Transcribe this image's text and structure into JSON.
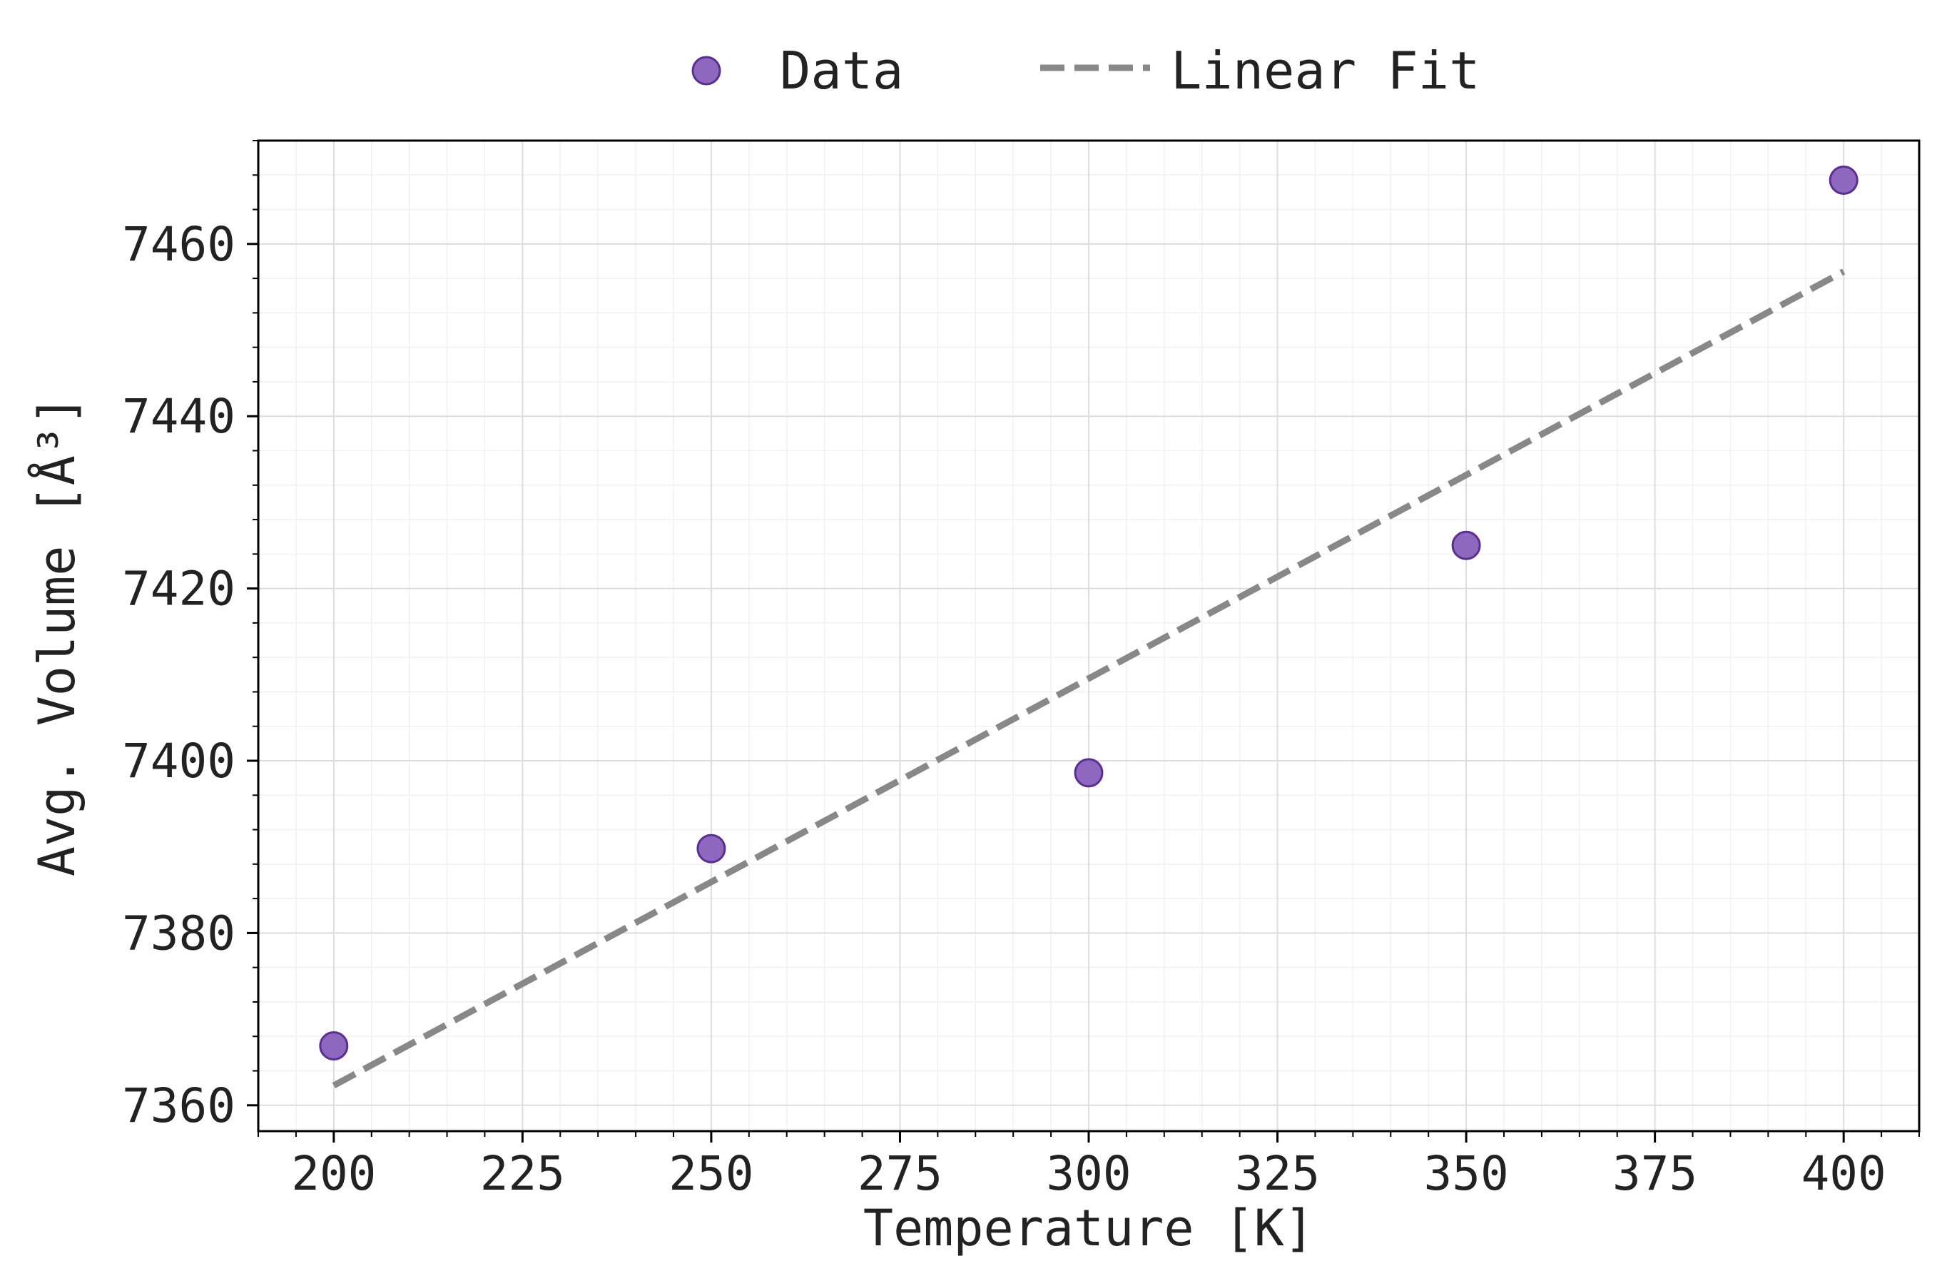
{
  "chart_data": {
    "type": "scatter",
    "title": "",
    "xlabel": "Temperature [K]",
    "ylabel": "Avg. Volume [Å³]",
    "xlim": [
      190,
      410
    ],
    "ylim": [
      7357,
      7472
    ],
    "xticks": [
      200,
      225,
      250,
      275,
      300,
      325,
      350,
      375,
      400
    ],
    "yticks": [
      7360,
      7380,
      7400,
      7420,
      7440,
      7460
    ],
    "grid": true,
    "legend_position": "top-center",
    "series": [
      {
        "name": "Data",
        "kind": "scatter",
        "color": "#8e68bf",
        "edge_color": "#5b2f91",
        "x": [
          200,
          250,
          300,
          350,
          400
        ],
        "y": [
          7366.9,
          7389.8,
          7398.6,
          7425.0,
          7467.4
        ]
      },
      {
        "name": "Linear Fit",
        "kind": "line",
        "style": "dashed",
        "color": "#888888",
        "x": [
          200,
          400
        ],
        "y": [
          7362.3,
          7456.8
        ]
      }
    ]
  }
}
